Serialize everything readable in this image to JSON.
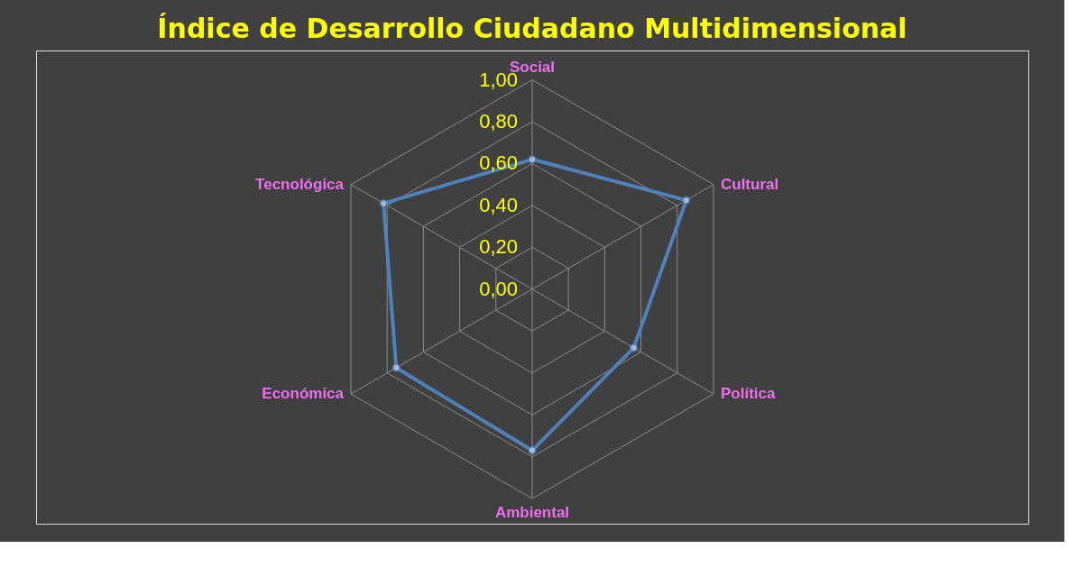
{
  "chart_data": {
    "type": "radar",
    "title": "Índice de Desarrollo Ciudadano Multidimensional",
    "categories": [
      "Social",
      "Cultural",
      "Política",
      "Ambiental",
      "Económica",
      "Tecnológica"
    ],
    "series": [
      {
        "color": "#4f81bd",
        "values": [
          0.62,
          0.85,
          0.56,
          0.77,
          0.75,
          0.82
        ]
      }
    ],
    "ylim": [
      0,
      1
    ],
    "yticks": [
      {
        "value": 0,
        "label": "0,00"
      },
      {
        "value": 0.2,
        "label": "0,20"
      },
      {
        "value": 0.4,
        "label": "0,40"
      },
      {
        "value": 0.6,
        "label": "0,60"
      },
      {
        "value": 0.8,
        "label": "0,80"
      },
      {
        "value": 1,
        "label": "1,00"
      }
    ],
    "grid": true,
    "marker": "circle",
    "line_style": "solid"
  }
}
